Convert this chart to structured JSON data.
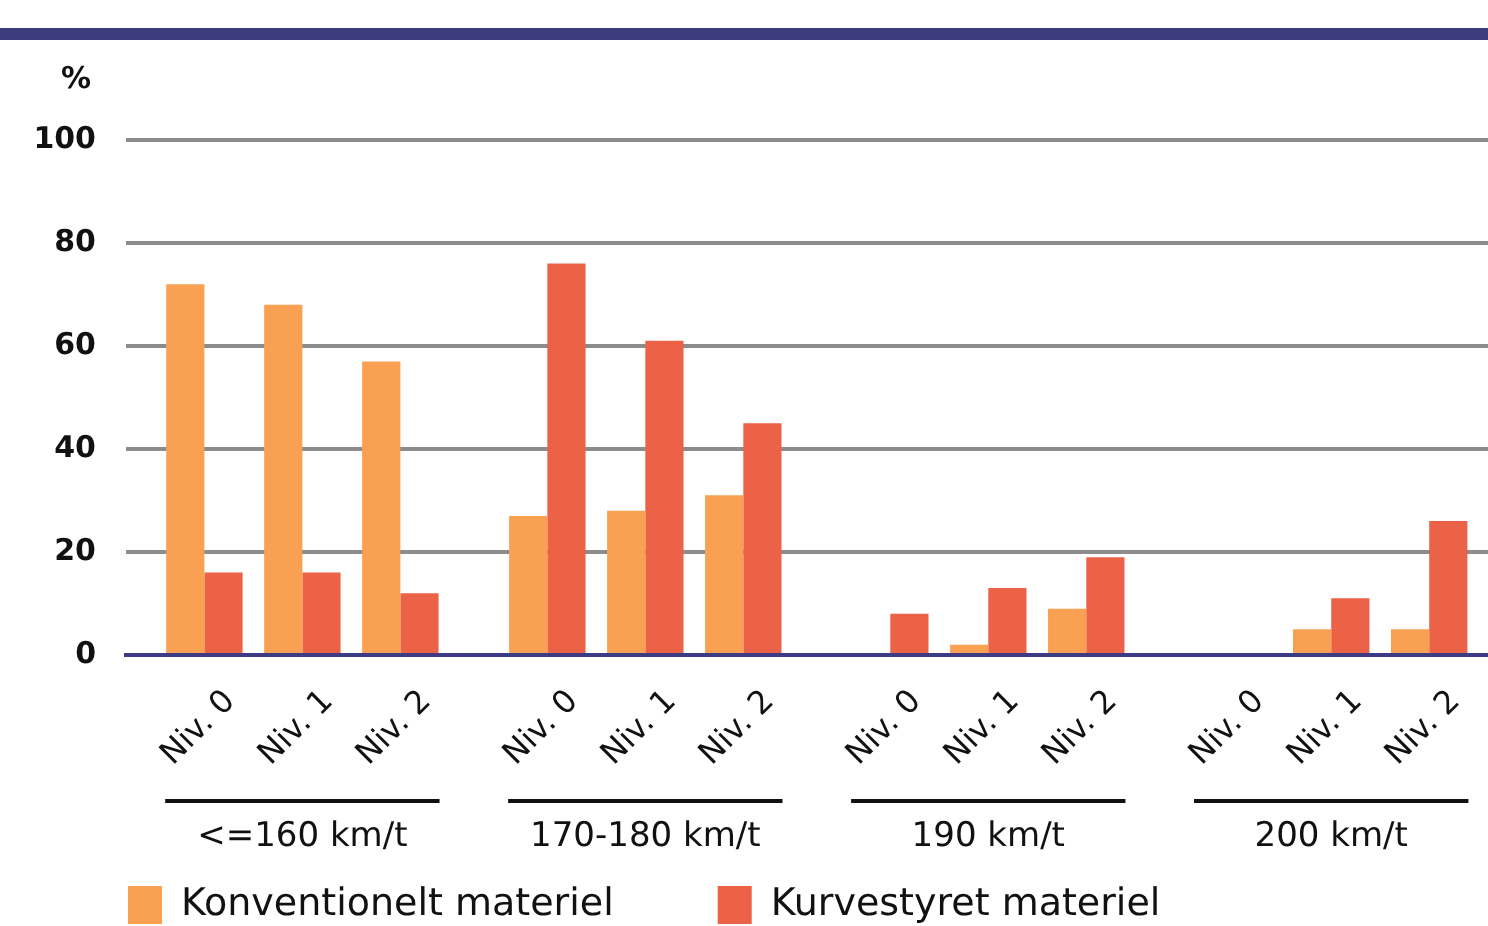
{
  "chart_data": {
    "type": "bar",
    "ylabel": "%",
    "categories": [
      "Niv. 0",
      "Niv. 1",
      "Niv. 2",
      "Niv. 0",
      "Niv. 1",
      "Niv. 2",
      "Niv. 0",
      "Niv. 1",
      "Niv. 2",
      "Niv. 0",
      "Niv. 1",
      "Niv. 2"
    ],
    "series": [
      {
        "name": "Konventionelt materiel",
        "color": "#f9a052",
        "values": [
          72,
          68,
          57,
          27,
          28,
          31,
          null,
          2,
          9,
          null,
          5,
          5
        ]
      },
      {
        "name": "Kurvestyret materiel",
        "color": "#ec6247",
        "values": [
          16,
          16,
          12,
          76,
          61,
          45,
          8,
          13,
          19,
          null,
          11,
          26
        ]
      }
    ],
    "ylim": [
      0,
      100
    ],
    "yticks": [
      0,
      20,
      40,
      60,
      80,
      100
    ],
    "grid": "y",
    "legend": "bottom left",
    "annotations": [
      "<=160 km/t",
      "170-180 km/t",
      "190 km/t",
      "200 km/t"
    ]
  }
}
